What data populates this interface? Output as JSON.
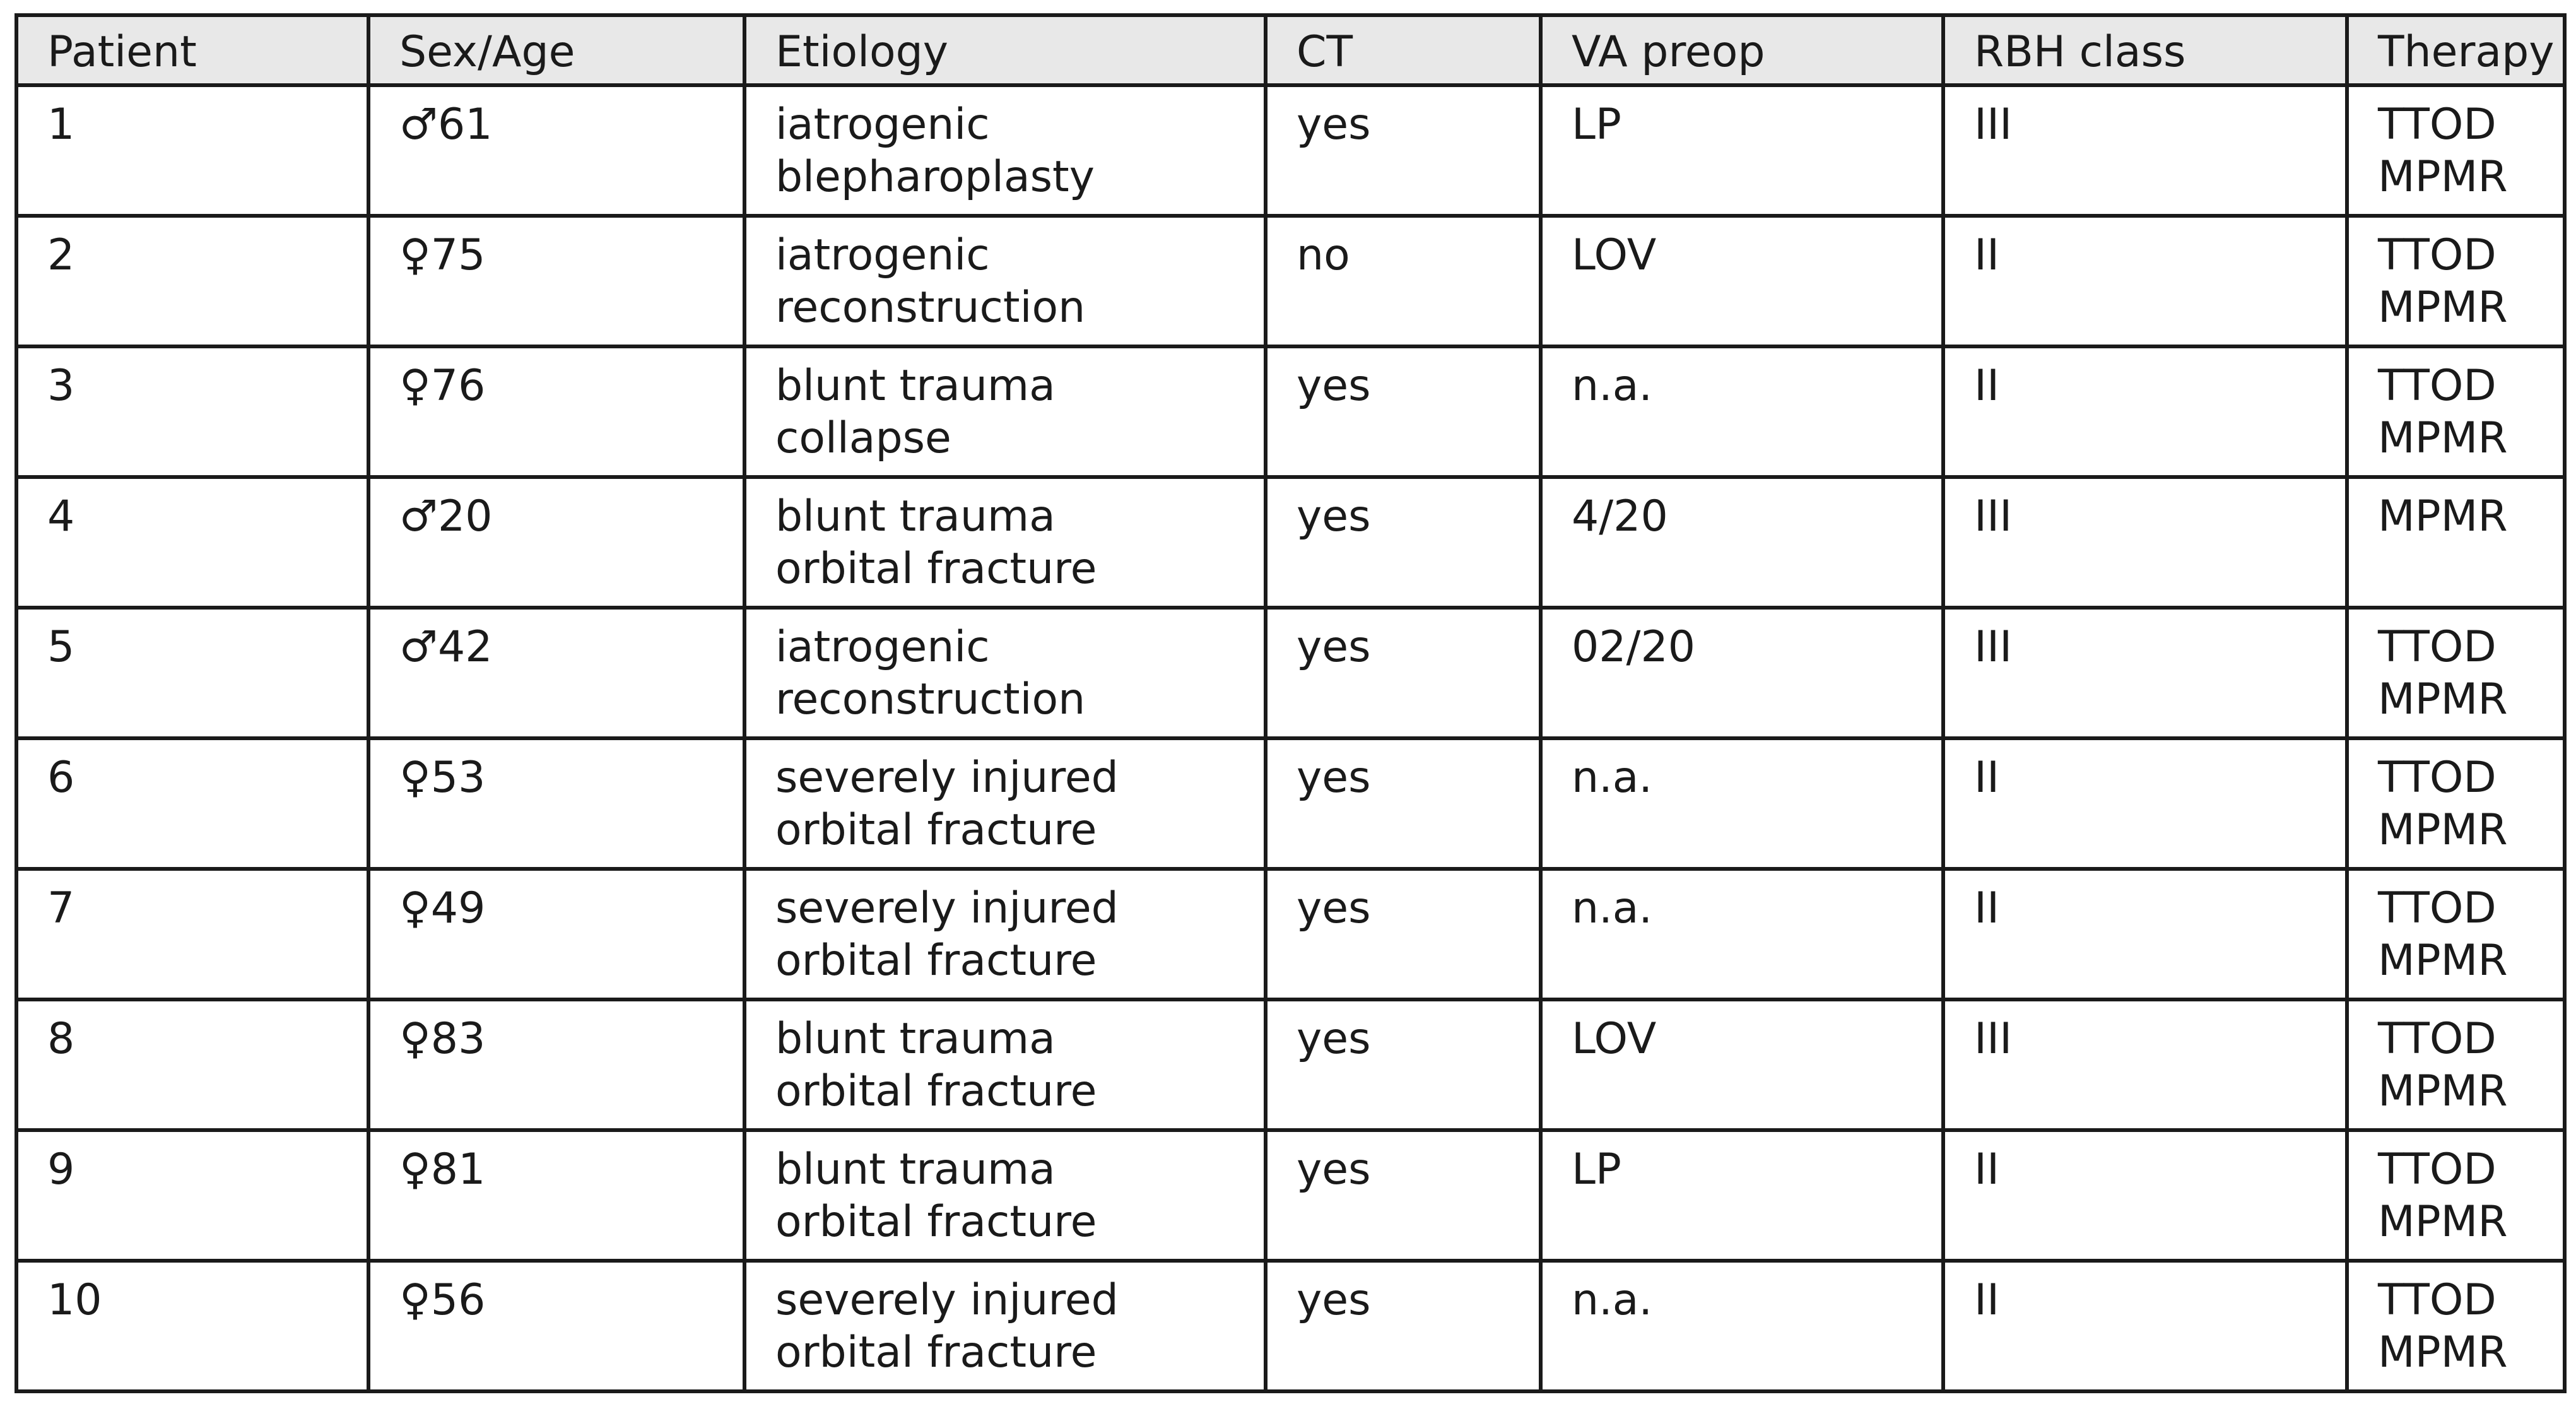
{
  "table": {
    "headers": [
      "Patient",
      "Sex/Age",
      "Etiology",
      "CT",
      "VA preop",
      "RBH class",
      "Therapy"
    ],
    "rows": [
      {
        "patient": "1",
        "sex_age": "♂61",
        "etiology": [
          "iatrogenic",
          "blepharoplasty"
        ],
        "ct": "yes",
        "va_preop": "LP",
        "rbh_class": "III",
        "therapy": [
          "TTOD",
          "MPMR"
        ]
      },
      {
        "patient": "2",
        "sex_age": "♀75",
        "etiology": [
          "iatrogenic",
          "reconstruction"
        ],
        "ct": "no",
        "va_preop": "LOV",
        "rbh_class": "II",
        "therapy": [
          "TTOD",
          "MPMR"
        ]
      },
      {
        "patient": "3",
        "sex_age": "♀76",
        "etiology": [
          "blunt trauma",
          "collapse"
        ],
        "ct": "yes",
        "va_preop": "n.a.",
        "rbh_class": "II",
        "therapy": [
          "TTOD",
          "MPMR"
        ]
      },
      {
        "patient": "4",
        "sex_age": "♂20",
        "etiology": [
          "blunt trauma",
          "orbital fracture"
        ],
        "ct": "yes",
        "va_preop": "4/20",
        "rbh_class": "III",
        "therapy": [
          "MPMR"
        ]
      },
      {
        "patient": "5",
        "sex_age": "♂42",
        "etiology": [
          "iatrogenic",
          "reconstruction"
        ],
        "ct": "yes",
        "va_preop": "02/20",
        "rbh_class": "III",
        "therapy": [
          "TTOD",
          "MPMR"
        ]
      },
      {
        "patient": "6",
        "sex_age": "♀53",
        "etiology": [
          "severely injured",
          "orbital fracture"
        ],
        "ct": "yes",
        "va_preop": "n.a.",
        "rbh_class": "II",
        "therapy": [
          "TTOD",
          "MPMR"
        ]
      },
      {
        "patient": "7",
        "sex_age": "♀49",
        "etiology": [
          "severely injured",
          "orbital fracture"
        ],
        "ct": "yes",
        "va_preop": "n.a.",
        "rbh_class": "II",
        "therapy": [
          "TTOD",
          "MPMR"
        ]
      },
      {
        "patient": "8",
        "sex_age": "♀83",
        "etiology": [
          "blunt trauma",
          "orbital fracture"
        ],
        "ct": "yes",
        "va_preop": "LOV",
        "rbh_class": "III",
        "therapy": [
          "TTOD",
          "MPMR"
        ]
      },
      {
        "patient": "9",
        "sex_age": "♀81",
        "etiology": [
          "blunt trauma",
          "orbital fracture"
        ],
        "ct": "yes",
        "va_preop": "LP",
        "rbh_class": "II",
        "therapy": [
          "TTOD",
          "MPMR"
        ]
      },
      {
        "patient": "10",
        "sex_age": "♀56",
        "etiology": [
          "severely injured",
          "orbital fracture"
        ],
        "ct": "yes",
        "va_preop": "n.a.",
        "rbh_class": "II",
        "therapy": [
          "TTOD",
          "MPMR"
        ]
      }
    ]
  }
}
